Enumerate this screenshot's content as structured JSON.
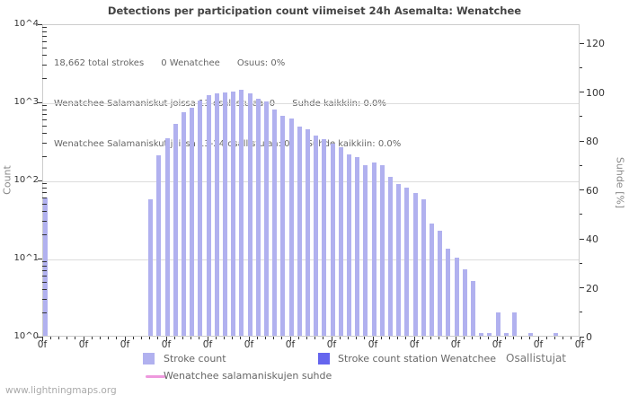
{
  "title": "Detections per participation count viimeiset 24h Asemalta: Wenatchee",
  "annotation": {
    "line1": "18,662 total strokes      0 Wenatchee      Osuus: 0%",
    "line2": "Wenatchee Salamaniskut joissa 13 osallistujaa: 0      Suhde kaikkiin: 0.0%",
    "line3": "Wenatchee Salamaniskut joissa 13-24 osallistujaa: 0      Suhde kaikkiin: 0.0%"
  },
  "axes": {
    "left_label": "Count",
    "right_label": "Suhde [%]",
    "x_label": "Osallistujat",
    "left_tick_labels": [
      "10^0",
      "10^1",
      "10^2",
      "10^3",
      "10^4"
    ],
    "right_tick_labels": [
      "0",
      "20",
      "40",
      "60",
      "80",
      "100",
      "120"
    ],
    "right_tick_step": 20,
    "right_minor_step": 10,
    "right_max": 120,
    "x_major_tick_label": "0f",
    "x_major_every": 5,
    "x_max": 65
  },
  "legend": [
    {
      "label": "Stroke count",
      "color": "#b1b1ef",
      "type": "box"
    },
    {
      "label": "Stroke count station Wenatchee",
      "color": "#6565ee",
      "type": "box"
    },
    {
      "label": "Wenatchee salamaniskujen suhde",
      "color": "#ee99dd",
      "type": "line"
    }
  ],
  "watermark": "www.lightningmaps.org",
  "colors": {
    "bar": "#b1b1ef",
    "station_bar": "#6565ee",
    "ratio_line": "#ee99dd",
    "grid": "#dcdcdc",
    "border": "#cccccc",
    "tick": "#333333"
  },
  "chart_data": {
    "type": "bar",
    "title": "Detections per participation count viimeiset 24h Asemalta: Wenatchee",
    "xlabel": "Osallistujat",
    "ylabel": "Count",
    "y2label": "Suhde [%]",
    "y_scale": "log10",
    "ylim": [
      1,
      10000
    ],
    "y2lim": [
      0,
      127
    ],
    "xlim": [
      0,
      65
    ],
    "grid": true,
    "legend_position": "bottom",
    "total_strokes": 18662,
    "station_strokes": 0,
    "series": [
      {
        "name": "Stroke count",
        "bars": [
          {
            "x": 0,
            "count": 59
          },
          {
            "x": 13,
            "count": 56
          },
          {
            "x": 14,
            "count": 207
          },
          {
            "x": 15,
            "count": 340
          },
          {
            "x": 16,
            "count": 517
          },
          {
            "x": 17,
            "count": 728
          },
          {
            "x": 18,
            "count": 831
          },
          {
            "x": 19,
            "count": 1023
          },
          {
            "x": 20,
            "count": 1200
          },
          {
            "x": 21,
            "count": 1265
          },
          {
            "x": 22,
            "count": 1300
          },
          {
            "x": 23,
            "count": 1330
          },
          {
            "x": 24,
            "count": 1400
          },
          {
            "x": 25,
            "count": 1265
          },
          {
            "x": 26,
            "count": 1080
          },
          {
            "x": 27,
            "count": 1000
          },
          {
            "x": 28,
            "count": 790
          },
          {
            "x": 29,
            "count": 655
          },
          {
            "x": 30,
            "count": 605
          },
          {
            "x": 31,
            "count": 478
          },
          {
            "x": 32,
            "count": 443
          },
          {
            "x": 33,
            "count": 369
          },
          {
            "x": 34,
            "count": 331
          },
          {
            "x": 35,
            "count": 290
          },
          {
            "x": 36,
            "count": 256
          },
          {
            "x": 37,
            "count": 208
          },
          {
            "x": 38,
            "count": 192
          },
          {
            "x": 39,
            "count": 154
          },
          {
            "x": 40,
            "count": 167
          },
          {
            "x": 41,
            "count": 151
          },
          {
            "x": 42,
            "count": 108
          },
          {
            "x": 43,
            "count": 87
          },
          {
            "x": 44,
            "count": 78
          },
          {
            "x": 45,
            "count": 67
          },
          {
            "x": 46,
            "count": 56
          },
          {
            "x": 47,
            "count": 27
          },
          {
            "x": 48,
            "count": 22
          },
          {
            "x": 49,
            "count": 13
          },
          {
            "x": 50,
            "count": 10
          },
          {
            "x": 51,
            "count": 7
          },
          {
            "x": 52,
            "count": 5
          },
          {
            "x": 53,
            "count": 1
          },
          {
            "x": 54,
            "count": 1
          },
          {
            "x": 55,
            "count": 2
          },
          {
            "x": 56,
            "count": 1
          },
          {
            "x": 57,
            "count": 2
          },
          {
            "x": 59,
            "count": 1
          },
          {
            "x": 62,
            "count": 1
          }
        ]
      },
      {
        "name": "Stroke count station Wenatchee",
        "bars": []
      }
    ]
  }
}
